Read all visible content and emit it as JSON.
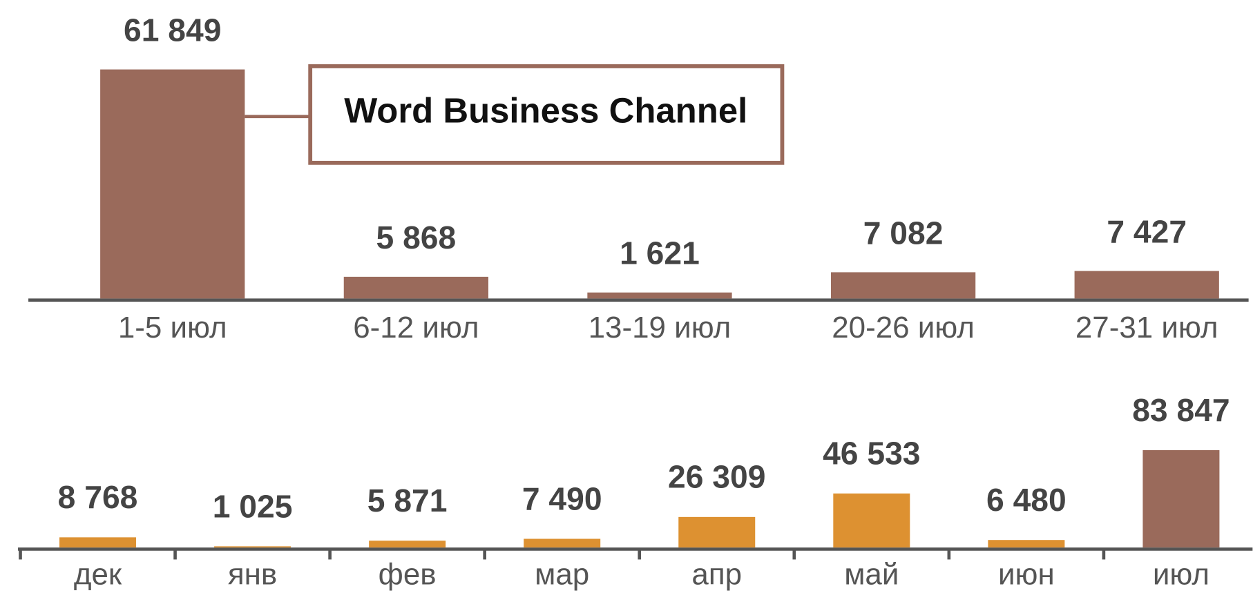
{
  "chart_data": [
    {
      "type": "bar",
      "annotation": "Word Business Channel",
      "categories": [
        "1-5 июл",
        "6-12 июл",
        "13-19 июл",
        "20-26 июл",
        "27-31 июл"
      ],
      "values": [
        61849,
        5868,
        1621,
        7082,
        7427
      ],
      "value_labels": [
        "61 849",
        "5 868",
        "1 621",
        "7 082",
        "7 427"
      ],
      "color": "#9a6a5b"
    },
    {
      "type": "bar",
      "categories": [
        "дек",
        "янв",
        "фев",
        "мар",
        "апр",
        "май",
        "июн",
        "июл"
      ],
      "values": [
        8768,
        1025,
        5871,
        7490,
        26309,
        46533,
        6480,
        83847
      ],
      "value_labels": [
        "8 768",
        "1 025",
        "5 871",
        "7 490",
        "26 309",
        "46 533",
        "6 480",
        "83 847"
      ],
      "colors": [
        "#dd9131",
        "#dd9131",
        "#dd9131",
        "#dd9131",
        "#dd9131",
        "#dd9131",
        "#dd9131",
        "#9a6a5b"
      ]
    }
  ]
}
